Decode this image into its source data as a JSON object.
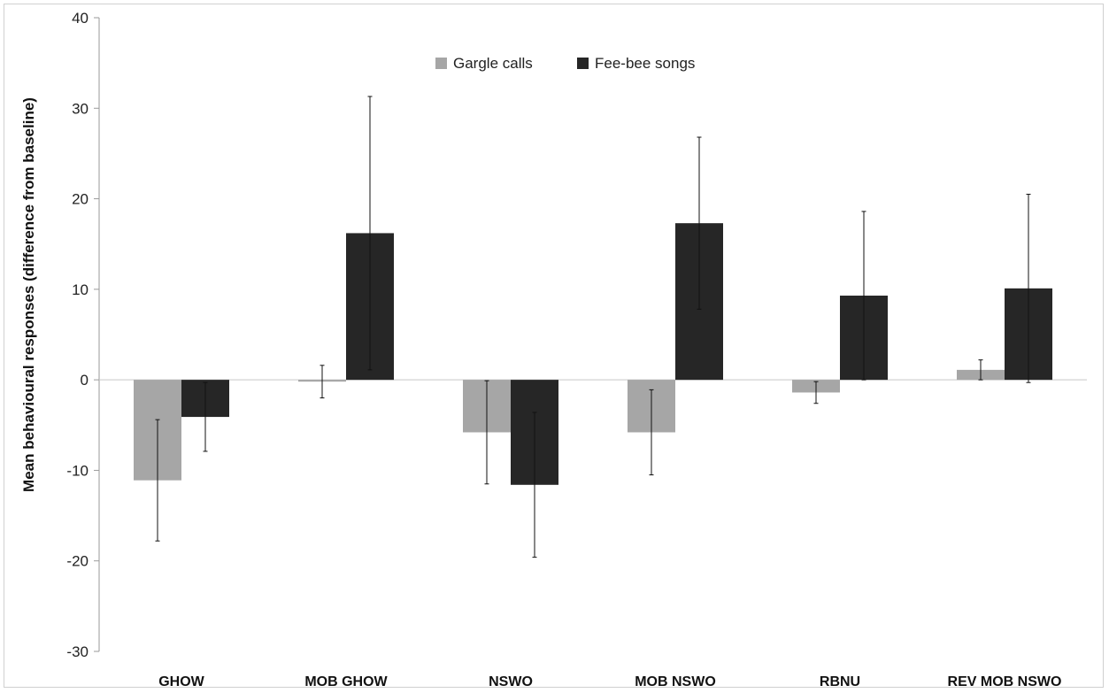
{
  "chart_data": {
    "type": "bar",
    "title": "",
    "xlabel": "",
    "ylabel": "Mean behavioural responses (difference from baseline)",
    "ylim": [
      -30,
      40
    ],
    "yticks": [
      -30,
      -20,
      -10,
      0,
      10,
      20,
      30,
      40
    ],
    "categories": [
      "GHOW",
      "MOB GHOW",
      "NSWO",
      "MOB NSWO",
      "RBNU",
      "REV MOB NSWO"
    ],
    "legend_position": "top-center",
    "grid": false,
    "series": [
      {
        "name": "Gargle calls",
        "color": "#a6a6a6",
        "values": [
          -11.1,
          -0.2,
          -5.8,
          -5.8,
          -1.4,
          1.1
        ],
        "error": [
          6.7,
          1.8,
          5.7,
          4.7,
          1.2,
          1.1
        ]
      },
      {
        "name": "Fee-bee songs",
        "color": "#262626",
        "values": [
          -4.1,
          16.2,
          -11.6,
          17.3,
          9.3,
          10.1
        ],
        "error": [
          3.8,
          15.1,
          8.0,
          9.5,
          9.3,
          10.4
        ]
      }
    ]
  }
}
